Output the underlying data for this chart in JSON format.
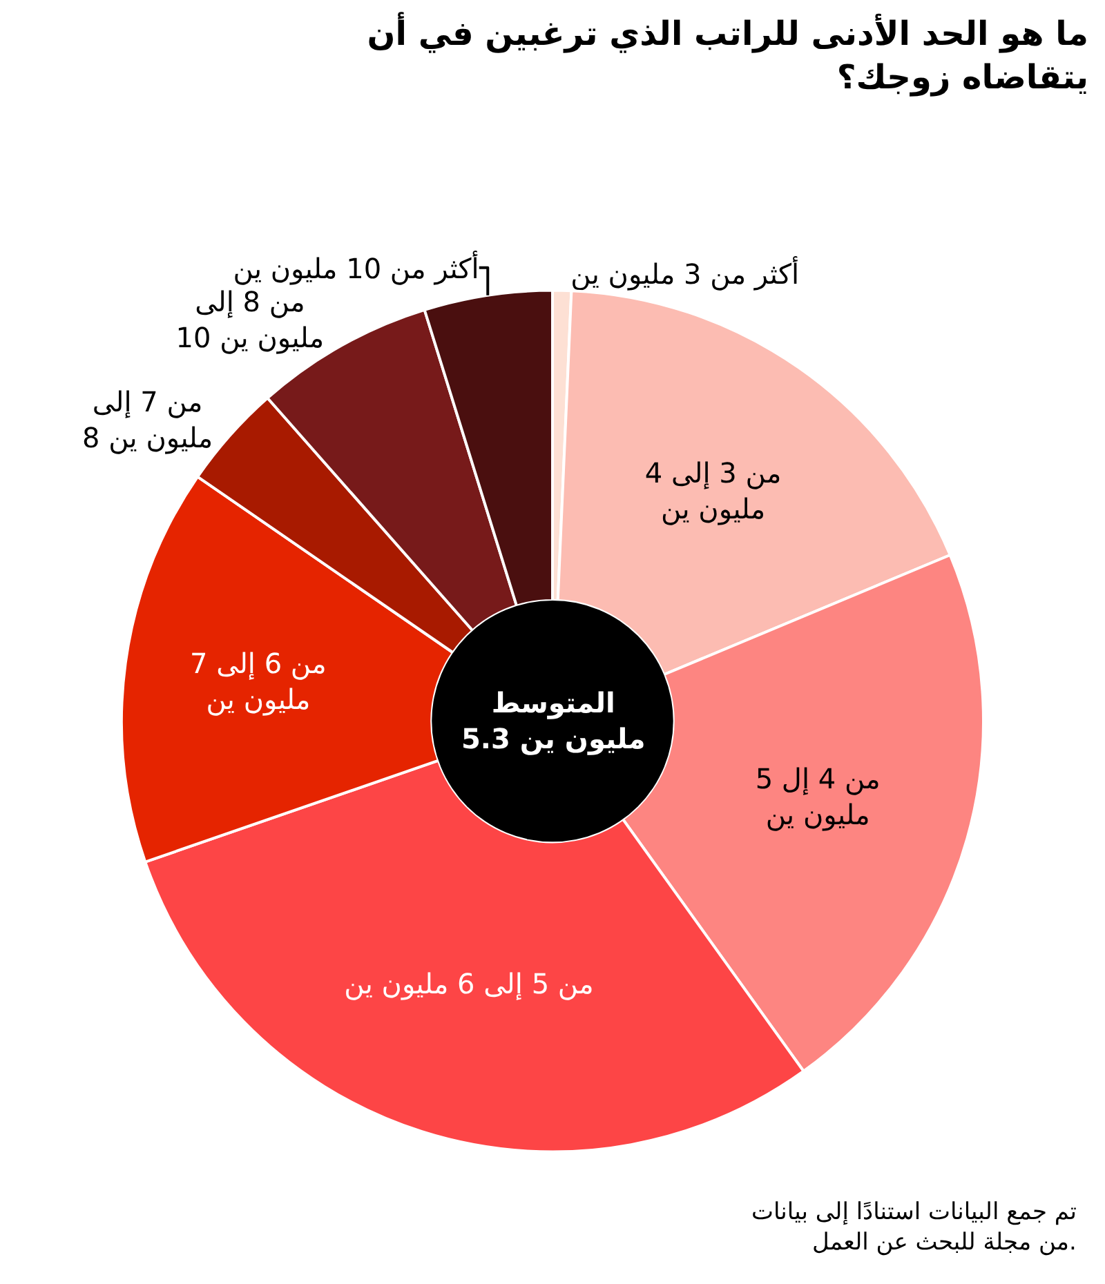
{
  "chart_data": {
    "type": "donut",
    "title": "ما هو الحد الأدنى للراتب الذي ترغبين في أن\nيتقاضاه زوجك؟",
    "categories": [
      "أكثر من 3 مليون ين",
      "من 3 إلى 4\nمليون ين",
      "من 4 إل 5\nمليون ين",
      "من 5 إلى 6 مليون ين",
      "من 6 إلى 7\nمليون ين",
      "من 7 إلى\n8 مليون ين",
      "من 8 إلى\n10 مليون ين",
      "أكثر من 10 مليون ين"
    ],
    "values": [
      0.7,
      18.0,
      21.4,
      29.6,
      14.9,
      3.9,
      6.7,
      4.8
    ],
    "colors": [
      "#fde0d4",
      "#fcbcb2",
      "#fd8581",
      "#fd4546",
      "#e52400",
      "#a81a00",
      "#771a1a",
      "#4a0f0f"
    ],
    "annotations": [
      "المتوسط\n5.3 مليون ين",
      "تم جمع البيانات استنادًا إلى بيانات\nمن مجلة للبحث عن العمل."
    ],
    "legend": false
  }
}
